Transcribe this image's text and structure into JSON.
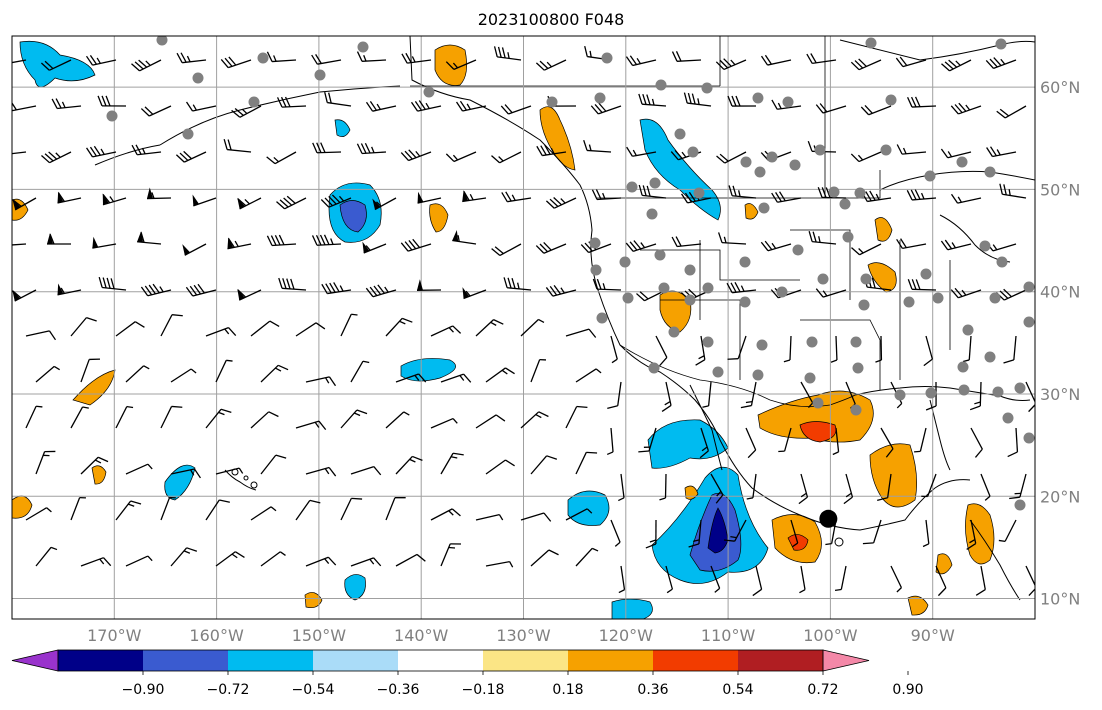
{
  "title": "2023100800 F048",
  "map": {
    "lon_range": [
      -180,
      -80
    ],
    "lat_range": [
      8,
      65
    ],
    "lon_ticks": [
      {
        "value": -170,
        "label": "170°W"
      },
      {
        "value": -160,
        "label": "160°W"
      },
      {
        "value": -150,
        "label": "150°W"
      },
      {
        "value": -140,
        "label": "140°W"
      },
      {
        "value": -130,
        "label": "130°W"
      },
      {
        "value": -120,
        "label": "120°W"
      },
      {
        "value": -110,
        "label": "110°W"
      },
      {
        "value": -100,
        "label": "100°W"
      },
      {
        "value": -90,
        "label": "90°W"
      }
    ],
    "lat_ticks": [
      {
        "value": 10,
        "label": "10°N"
      },
      {
        "value": 20,
        "label": "20°N"
      },
      {
        "value": 30,
        "label": "30°N"
      },
      {
        "value": 40,
        "label": "40°N"
      },
      {
        "value": 50,
        "label": "50°N"
      },
      {
        "value": 60,
        "label": "60°N"
      }
    ],
    "grid": true,
    "storm_marker": {
      "lon": -100.2,
      "lat": 17.8
    }
  },
  "colorbar": {
    "colors": [
      "#9933cc",
      "#000088",
      "#3a5bd0",
      "#00bbf0",
      "#aadcf8",
      "#ffffff",
      "#fbe585",
      "#f6a100",
      "#f23c00",
      "#b01e22",
      "#f488a8"
    ],
    "labels": [
      "−0.90",
      "−0.72",
      "−0.54",
      "−0.36",
      "−0.18",
      "0.18",
      "0.36",
      "0.54",
      "0.72",
      "0.90"
    ]
  }
}
